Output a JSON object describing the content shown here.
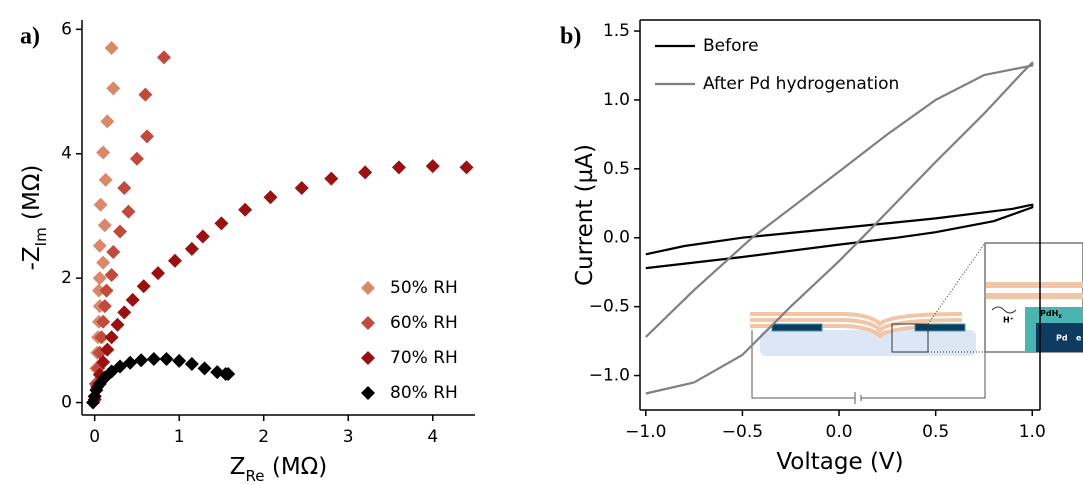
{
  "chart_data": [
    {
      "type": "scatter",
      "panel_label": "a)",
      "xlabel": {
        "main": "Z",
        "sub": "Re",
        "rest": " (MΩ)"
      },
      "ylabel": {
        "main": "-Z",
        "sub": "Im",
        "rest": " (MΩ)"
      },
      "xlim": [
        -0.15,
        4.5
      ],
      "ylim": [
        -0.2,
        6.15
      ],
      "xticks": [
        0,
        1,
        2,
        3,
        4
      ],
      "yticks": [
        0,
        2,
        4,
        6
      ],
      "frame": false,
      "legend": "lower right",
      "series": [
        {
          "name": "50% RH",
          "color": "#d9896a",
          "x": [
            0,
            0.01,
            0.02,
            0.03,
            0.04,
            0.05,
            0.06,
            0.05,
            0.06,
            0.1,
            0.06,
            0.12,
            0.07,
            0.13,
            0.1,
            0.15,
            0.22,
            0.2
          ],
          "values": [
            0.05,
            0.3,
            0.55,
            0.8,
            1.05,
            1.3,
            1.55,
            1.8,
            2.0,
            2.25,
            2.52,
            2.85,
            3.18,
            3.58,
            4.02,
            4.52,
            5.05,
            5.7
          ]
        },
        {
          "name": "60% RH",
          "color": "#c04a3c",
          "x": [
            0,
            0.02,
            0.04,
            0.06,
            0.08,
            0.1,
            0.12,
            0.14,
            0.2,
            0.22,
            0.3,
            0.4,
            0.35,
            0.5,
            0.62,
            0.6,
            0.82
          ],
          "values": [
            0.05,
            0.3,
            0.55,
            0.8,
            1.05,
            1.3,
            1.55,
            1.8,
            2.05,
            2.42,
            2.75,
            3.07,
            3.45,
            3.92,
            4.28,
            4.95,
            5.55
          ]
        },
        {
          "name": "70% RH",
          "color": "#9a1111",
          "x": [
            0,
            0.03,
            0.06,
            0.1,
            0.15,
            0.2,
            0.27,
            0.35,
            0.45,
            0.58,
            0.75,
            0.95,
            1.15,
            1.28,
            1.5,
            1.78,
            2.08,
            2.45,
            2.8,
            3.2,
            3.6,
            4.0,
            4.4
          ],
          "values": [
            0.05,
            0.25,
            0.45,
            0.65,
            0.85,
            1.05,
            1.25,
            1.45,
            1.65,
            1.87,
            2.08,
            2.28,
            2.47,
            2.67,
            2.88,
            3.1,
            3.3,
            3.45,
            3.6,
            3.7,
            3.78,
            3.8,
            3.78
          ]
        },
        {
          "name": "80% RH",
          "color": "#000000",
          "x": [
            -0.02,
            0,
            0.02,
            0.06,
            0.12,
            0.2,
            0.3,
            0.42,
            0.55,
            0.7,
            0.85,
            1.0,
            1.15,
            1.3,
            1.45,
            1.55,
            1.58
          ],
          "values": [
            0,
            0.1,
            0.2,
            0.3,
            0.4,
            0.5,
            0.58,
            0.64,
            0.68,
            0.7,
            0.7,
            0.67,
            0.62,
            0.55,
            0.49,
            0.46,
            0.46
          ]
        }
      ]
    },
    {
      "type": "line",
      "panel_label": "b)",
      "xlabel": {
        "main": "Voltage (V)"
      },
      "ylabel": {
        "main": "Current (µA)"
      },
      "xlim": [
        -1.03,
        1.04
      ],
      "ylim": [
        -1.25,
        1.58
      ],
      "xticks": [
        {
          "value": -1,
          "label": "−1.0"
        },
        {
          "value": -0.5,
          "label": "−0.5"
        },
        {
          "value": 0,
          "label": "0.0"
        },
        {
          "value": 0.5,
          "label": "0.5"
        },
        {
          "value": 1,
          "label": "1.0"
        }
      ],
      "yticks": [
        {
          "value": -1,
          "label": "−1.0"
        },
        {
          "value": -0.5,
          "label": "−0.5"
        },
        {
          "value": 0,
          "label": "0.0"
        },
        {
          "value": 0.5,
          "label": "0.5"
        },
        {
          "value": 1,
          "label": "1.0"
        },
        1.5
      ],
      "frame": true,
      "legend": "upper left",
      "series": [
        {
          "name": "Before",
          "color": "#000000",
          "x": [
            -1,
            -0.8,
            -0.5,
            0,
            0.5,
            0.9,
            1,
            1,
            0.8,
            0.5,
            0.3,
            0,
            -0.5,
            -1
          ],
          "values": [
            -0.12,
            -0.06,
            0,
            0.07,
            0.14,
            0.21,
            0.24,
            0.22,
            0.12,
            0.04,
            0,
            -0.05,
            -0.14,
            -0.22
          ]
        },
        {
          "name": "After Pd hydrogenation",
          "color": "#808080",
          "x": [
            -1,
            -0.75,
            -0.5,
            -0.25,
            0,
            0.12,
            0.5,
            0.75,
            0.95,
            1,
            1,
            0.75,
            0.5,
            0.25,
            0,
            -0.45,
            -0.75,
            -1
          ],
          "values": [
            -1.13,
            -1.05,
            -0.85,
            -0.5,
            -0.17,
            0,
            0.55,
            0.9,
            1.2,
            1.27,
            1.25,
            1.18,
            1.0,
            0.75,
            0.48,
            0,
            -0.38,
            -0.72
          ]
        }
      ]
    }
  ],
  "inset": {
    "h": "H⁺",
    "pdh": "PdH",
    "pdh_sub": "x",
    "pd": "Pd",
    "e": "e"
  }
}
